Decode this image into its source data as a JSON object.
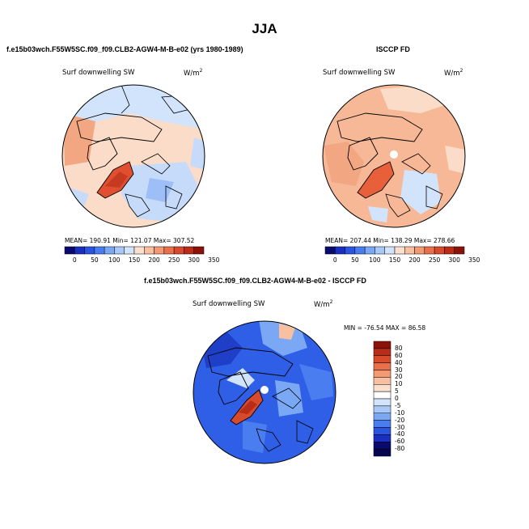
{
  "season": "JJA",
  "panels": {
    "model": {
      "heading": "f.e15b03wch.F55W5SC.f09_f09.CLB2-AGW4-M-B-e02 (yrs 1980-1989)",
      "variable": "Surf downwelling SW",
      "units_base": "W/m",
      "units_exp": "2",
      "stats": "MEAN= 190.91   Min= 121.07   Max= 307.52"
    },
    "obs": {
      "heading": "ISCCP FD",
      "variable": "Surf downwelling SW",
      "units_base": "W/m",
      "units_exp": "2",
      "stats": "MEAN= 207.44   Min= 138.29   Max= 278.66"
    },
    "diff": {
      "heading": "f.e15b03wch.F55W5SC.f09_f09.CLB2-AGW4-M-B-e02 - ISCCP FD",
      "variable": "Surf downwelling SW",
      "units_base": "W/m",
      "units_exp": "2",
      "stats": "MIN = -76.54  MAX =  86.58"
    }
  },
  "colorbar_abs": {
    "ticks": [
      "0",
      "50",
      "100",
      "150",
      "200",
      "250",
      "300",
      "350"
    ],
    "colors": [
      "#0a0a6e",
      "#1a2fc0",
      "#2b55e0",
      "#4a7ef0",
      "#7aa8f5",
      "#a8c8f8",
      "#d2e4fb",
      "#fbe0cf",
      "#f8c0a0",
      "#f39a74",
      "#ea704c",
      "#d84a2c",
      "#b82c18",
      "#8a1208"
    ]
  },
  "colorbar_diff": {
    "ticks": [
      "80",
      "60",
      "40",
      "30",
      "20",
      "10",
      "5",
      "0",
      "-5",
      "-10",
      "-20",
      "-30",
      "-40",
      "-60",
      "-80"
    ],
    "colors": [
      "#8a1208",
      "#b82c18",
      "#d84a2c",
      "#ea704c",
      "#f39a74",
      "#f8c0a0",
      "#fbe0cf",
      "#ffffff",
      "#d2e4fb",
      "#a8c8f8",
      "#7aa8f5",
      "#4a7ef0",
      "#2b55e0",
      "#1a2fc0",
      "#0a0a6e",
      "#060650"
    ]
  }
}
